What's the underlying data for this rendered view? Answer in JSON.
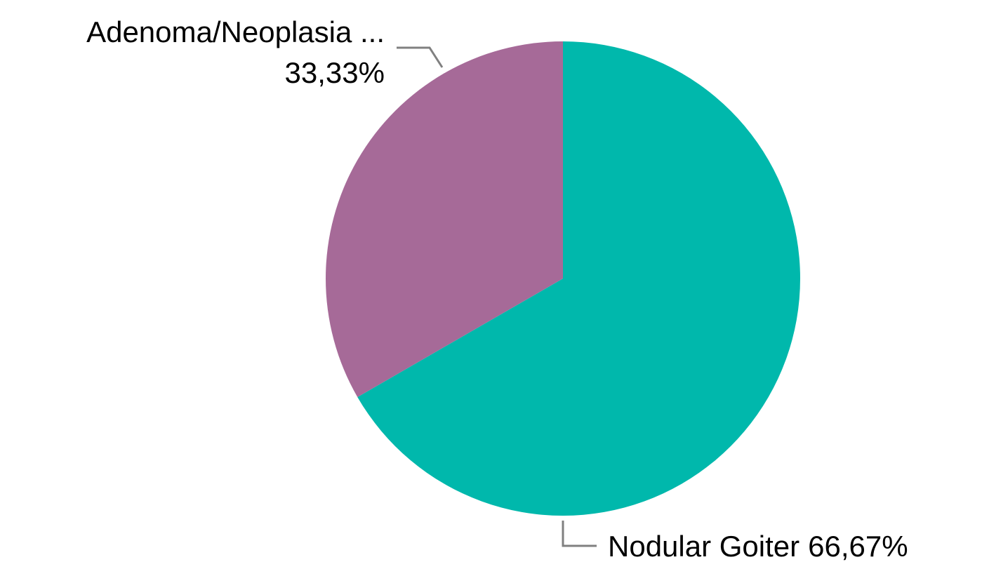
{
  "chart_data": {
    "type": "pie",
    "categories": [
      "Nodular Goiter",
      "Adenoma/Neoplasia ..."
    ],
    "values": [
      66.67,
      33.33
    ],
    "value_labels": [
      "66,67%",
      "33,33%"
    ],
    "colors": [
      "#00b8ac",
      "#a66a98"
    ]
  }
}
